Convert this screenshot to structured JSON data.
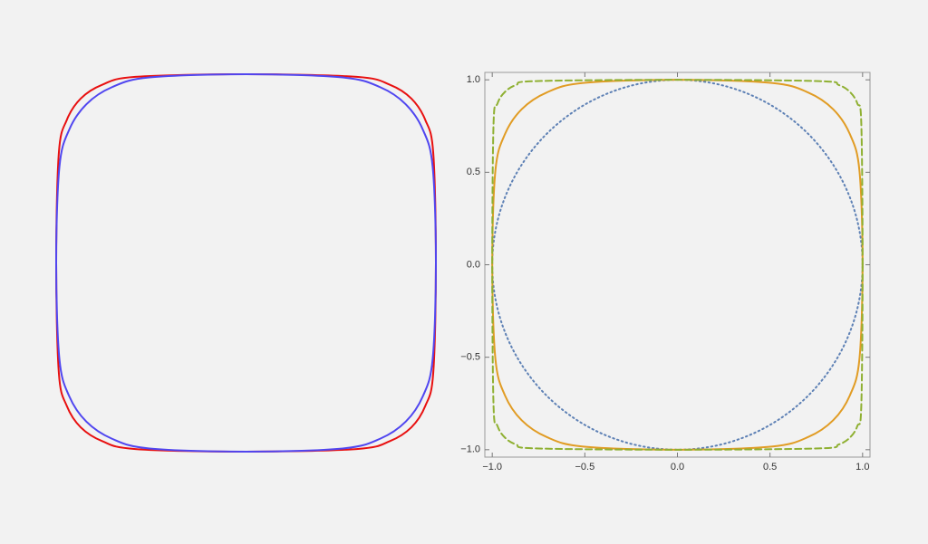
{
  "chart_data": [
    {
      "type": "line",
      "series": [
        {
          "color": "#e81010",
          "dash": "solid",
          "x": [
            1,
            0.986,
            0.944,
            0.871,
            0.758,
            0.583,
            0,
            -0.583,
            -0.758,
            -0.871,
            -0.944,
            -0.986,
            -1,
            -0.986,
            -0.944,
            -0.871,
            -0.758,
            -0.583,
            0,
            0.583,
            0.758,
            0.871,
            0.944,
            0.986
          ],
          "y": [
            0,
            0.583,
            0.758,
            0.871,
            0.944,
            0.986,
            1,
            0.986,
            0.944,
            0.871,
            0.758,
            0.583,
            0,
            -0.583,
            -0.758,
            -0.871,
            -0.944,
            -0.986,
            -1,
            -0.986,
            -0.944,
            -0.871,
            -0.758,
            -0.583
          ]
        },
        {
          "color": "#5046f0",
          "dash": "solid",
          "x": [
            1,
            0.983,
            0.931,
            0.841,
            0.707,
            0.509,
            0,
            -0.509,
            -0.707,
            -0.841,
            -0.931,
            -0.983,
            -1,
            -0.983,
            -0.931,
            -0.841,
            -0.707,
            -0.509,
            0,
            0.509,
            0.707,
            0.841,
            0.931,
            0.983
          ],
          "y": [
            0,
            0.509,
            0.707,
            0.841,
            0.931,
            0.983,
            1,
            0.983,
            0.931,
            0.841,
            0.707,
            0.509,
            0,
            -0.509,
            -0.707,
            -0.841,
            -0.931,
            -0.983,
            -1,
            -0.983,
            -0.931,
            -0.841,
            -0.707,
            -0.509
          ]
        }
      ]
    },
    {
      "type": "line",
      "xlim": [
        -1.04,
        1.04
      ],
      "ylim": [
        -1.04,
        1.04
      ],
      "xticks": [
        {
          "value": -1,
          "label": "−1.0"
        },
        {
          "value": -0.5,
          "label": "−0.5"
        },
        {
          "value": 0,
          "label": "0.0"
        },
        0.5,
        {
          "value": 1,
          "label": "1.0"
        }
      ],
      "yticks": [
        {
          "value": -1,
          "label": "−1.0"
        },
        {
          "value": -0.5,
          "label": "−0.5"
        },
        {
          "value": 0,
          "label": "0.0"
        },
        0.5,
        {
          "value": 1,
          "label": "1.0"
        }
      ],
      "series": [
        {
          "color": "#5e81b5",
          "dash": "dotted",
          "x": [
            1,
            0.966,
            0.866,
            0.707,
            0.5,
            0.259,
            0,
            -0.259,
            -0.5,
            -0.707,
            -0.866,
            -0.966,
            -1,
            -0.966,
            -0.866,
            -0.707,
            -0.5,
            -0.259,
            0,
            0.259,
            0.5,
            0.707,
            0.866,
            0.966
          ],
          "y": [
            0,
            0.259,
            0.5,
            0.707,
            0.866,
            0.966,
            1,
            0.966,
            0.866,
            0.707,
            0.5,
            0.259,
            0,
            -0.259,
            -0.5,
            -0.707,
            -0.866,
            -0.966,
            -1,
            -0.966,
            -0.866,
            -0.707,
            -0.5,
            -0.259
          ]
        },
        {
          "color": "#e19c24",
          "dash": "solid",
          "x": [
            1,
            0.983,
            0.931,
            0.841,
            0.707,
            0.509,
            0,
            -0.509,
            -0.707,
            -0.841,
            -0.931,
            -0.983,
            -1,
            -0.983,
            -0.931,
            -0.841,
            -0.707,
            -0.509,
            0,
            0.509,
            0.707,
            0.841,
            0.931,
            0.983
          ],
          "y": [
            0,
            0.509,
            0.707,
            0.841,
            0.931,
            0.983,
            1,
            0.983,
            0.931,
            0.841,
            0.707,
            0.509,
            0,
            -0.509,
            -0.707,
            -0.841,
            -0.931,
            -0.983,
            -1,
            -0.983,
            -0.931,
            -0.841,
            -0.707,
            -0.509
          ]
        },
        {
          "color": "#8fb032",
          "dash": "dashed",
          "x": [
            1,
            0.993,
            0.972,
            0.933,
            0.871,
            0.763,
            0,
            -0.763,
            -0.871,
            -0.933,
            -0.972,
            -0.993,
            -1,
            -0.993,
            -0.972,
            -0.933,
            -0.871,
            -0.763,
            0,
            0.763,
            0.871,
            0.933,
            0.972,
            0.993
          ],
          "y": [
            0,
            0.763,
            0.871,
            0.933,
            0.972,
            0.993,
            1,
            0.993,
            0.972,
            0.933,
            0.871,
            0.763,
            0,
            -0.763,
            -0.871,
            -0.933,
            -0.972,
            -0.993,
            -1,
            -0.993,
            -0.972,
            -0.933,
            -0.871,
            -0.763
          ]
        }
      ]
    }
  ]
}
